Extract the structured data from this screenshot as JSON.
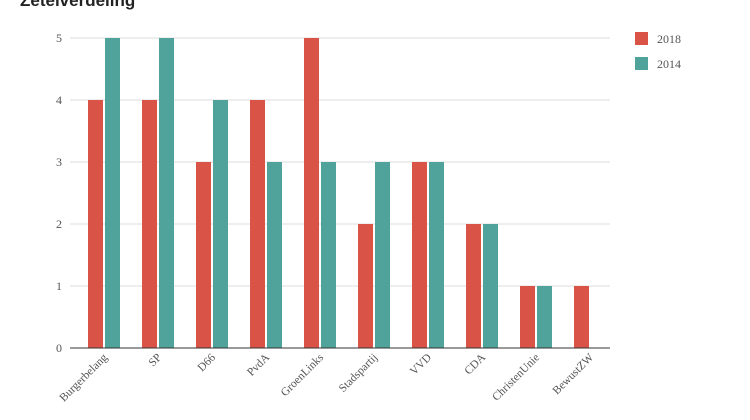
{
  "chart_data": {
    "type": "bar",
    "title": "Zetelverdeling",
    "categories": [
      "Burgerbelang",
      "SP",
      "D66",
      "PvdA",
      "GroenLinks",
      "Stadspartij",
      "VVD",
      "CDA",
      "ChristenUnie",
      "BewustZW"
    ],
    "series": [
      {
        "name": "2018",
        "color": "#d95446",
        "values": [
          4,
          4,
          3,
          4,
          5,
          2,
          3,
          2,
          1,
          1
        ]
      },
      {
        "name": "2014",
        "color": "#4fa39b",
        "values": [
          5,
          5,
          4,
          3,
          3,
          3,
          3,
          2,
          1,
          null
        ]
      }
    ],
    "yticks": [
      0,
      1,
      2,
      3,
      4,
      5
    ],
    "ylim": [
      0,
      5
    ],
    "grid": true,
    "legend_position": "top-right",
    "xlabel": "",
    "ylabel": ""
  }
}
